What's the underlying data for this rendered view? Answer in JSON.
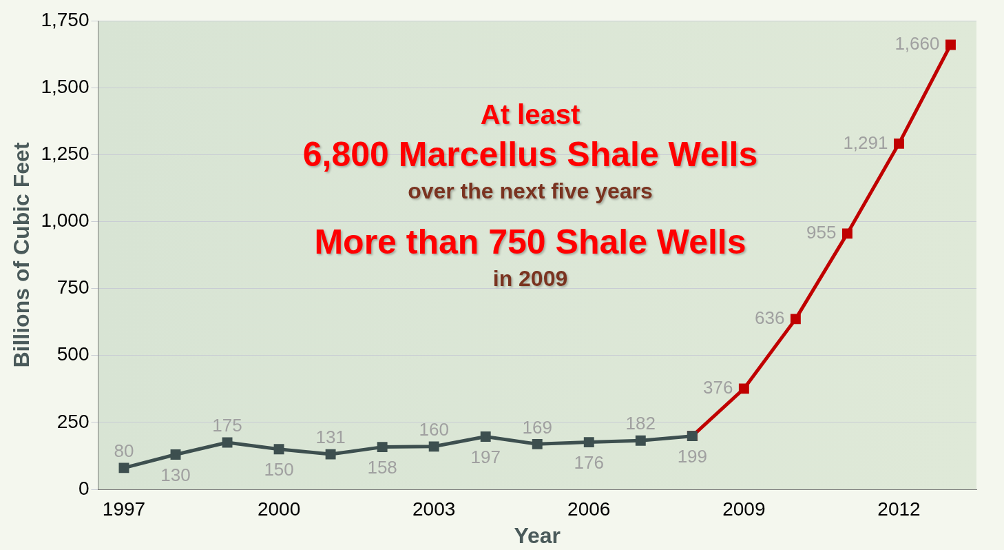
{
  "chart_data": {
    "type": "line",
    "xlabel": "Year",
    "ylabel": "Billions of Cubic Feet",
    "xlim": [
      1996.5,
      2013.5
    ],
    "xticks": [
      1997,
      2000,
      2003,
      2006,
      2009,
      2012
    ],
    "ylim": [
      0,
      1750
    ],
    "yticks": [
      0,
      250,
      500,
      750,
      {
        "value": 1000,
        "label": "1,000"
      },
      {
        "value": 1250,
        "label": "1,250"
      },
      {
        "value": 1500,
        "label": "1,500"
      },
      {
        "value": 1750,
        "label": "1,750"
      }
    ],
    "grid": "y",
    "marker": "square",
    "line_style": "solid",
    "legend": false,
    "series": [
      {
        "color": "#3d4f4f",
        "x": [
          1997,
          1998,
          1999,
          2000,
          2001,
          2002,
          2003,
          2004,
          2005,
          2006,
          2007,
          2008
        ],
        "values": [
          80,
          130,
          175,
          150,
          131,
          158,
          160,
          197,
          169,
          176,
          182,
          199
        ],
        "value_labels": [
          "80",
          "130",
          "175",
          "150",
          "131",
          "158",
          "160",
          "197",
          "169",
          "176",
          "182",
          "199"
        ]
      },
      {
        "color": "#c00000",
        "x": [
          2008,
          2009,
          2010,
          2011,
          2012,
          2013
        ],
        "values": [
          199,
          376,
          636,
          955,
          1291,
          1660
        ],
        "value_labels": [
          null,
          "376",
          "636",
          "955",
          "1,291",
          "1,660"
        ]
      }
    ],
    "annotations": [
      "At least",
      "6,800 Marcellus Shale Wells",
      "over the next five years",
      "More than 750 Shale Wells",
      "in 2009"
    ]
  }
}
